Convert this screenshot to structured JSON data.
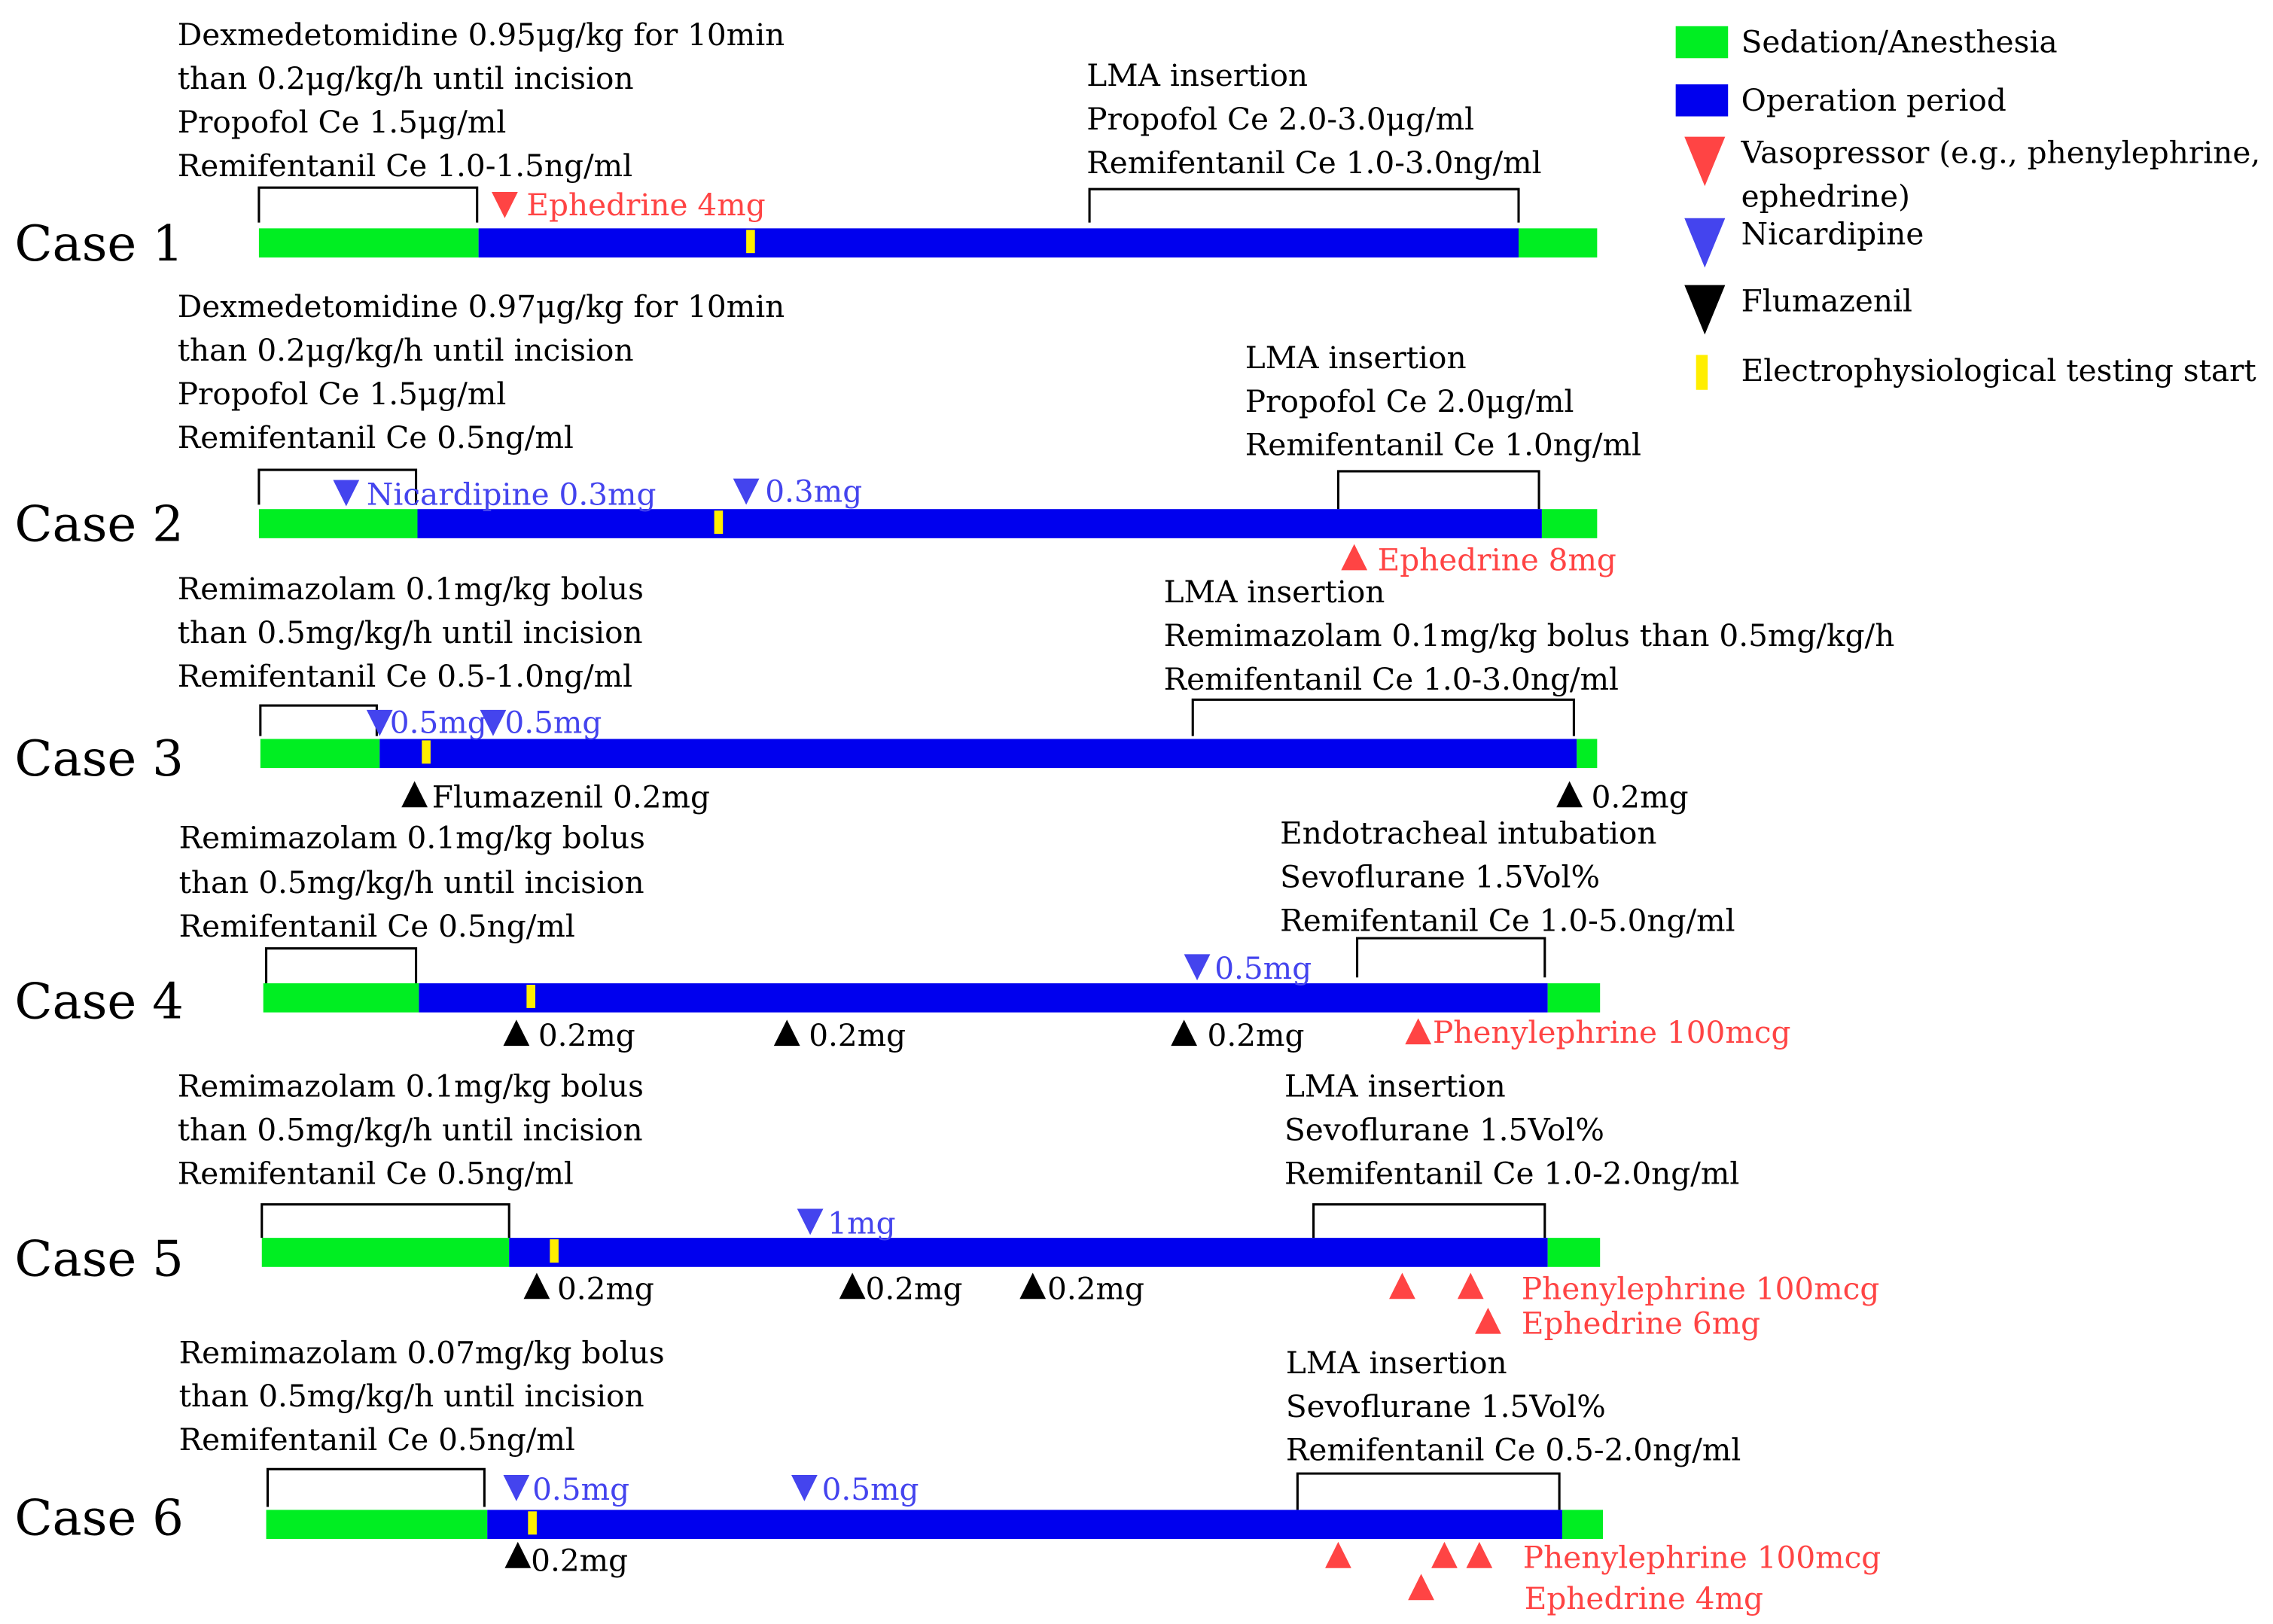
{
  "colors": {
    "sedation": "#00ee22",
    "operation": "#0000ee",
    "vasopressor": "#ff4444",
    "nicardipine": "#4444ee",
    "flumazenil": "#000000",
    "ep_start": "#ffee00",
    "bracket": "#000000",
    "text": "#000000"
  },
  "legend": [
    {
      "key": "sedation",
      "label": "Sedation/Anesthesia",
      "icon": "green-rect"
    },
    {
      "key": "operation",
      "label": "Operation period",
      "icon": "blue-rect"
    },
    {
      "key": "vasopressor",
      "label": "Vasopressor (e.g., phenylephrine,",
      "label2": "ephedrine)",
      "icon": "red-triangle-down"
    },
    {
      "key": "nicardipine",
      "label": "Nicardipine",
      "icon": "blue-triangle-down"
    },
    {
      "key": "flumazenil",
      "label": "Flumazenil",
      "icon": "black-triangle-down"
    },
    {
      "key": "ep_start",
      "label": "Electrophysiological testing start",
      "icon": "yellow-tick"
    }
  ],
  "cases": [
    {
      "label": "Case 1",
      "pre_text": [
        "Dexmedetomidine 0.95μg/kg for 10min",
        "than 0.2μg/kg/h until incision",
        "Propofol Ce 1.5μg/ml",
        "Remifentanil Ce 1.0-1.5ng/ml"
      ],
      "post_text": [
        "LMA insertion",
        "Propofol Ce 2.0-3.0μg/ml",
        "Remifentanil Ce 1.0-3.0ng/ml"
      ],
      "marker_labels": [
        "Ephedrine 4mg"
      ]
    },
    {
      "label": "Case 2",
      "pre_text": [
        "Dexmedetomidine 0.97μg/kg for 10min",
        "than 0.2μg/kg/h until incision",
        "Propofol Ce 1.5μg/ml",
        "Remifentanil Ce 0.5ng/ml"
      ],
      "post_text": [
        "LMA insertion",
        "Propofol Ce 2.0μg/ml",
        "Remifentanil Ce 1.0ng/ml"
      ],
      "marker_labels": [
        "Nicardipine 0.3mg",
        "0.3mg",
        "Ephedrine 8mg"
      ]
    },
    {
      "label": "Case 3",
      "pre_text": [
        "Remimazolam 0.1mg/kg bolus",
        "than 0.5mg/kg/h until incision",
        "Remifentanil Ce 0.5-1.0ng/ml"
      ],
      "post_text": [
        "LMA insertion",
        "Remimazolam 0.1mg/kg bolus than 0.5mg/kg/h",
        "Remifentanil Ce 1.0-3.0ng/ml"
      ],
      "marker_labels": [
        "0.5mg",
        "0.5mg",
        "Flumazenil 0.2mg",
        "0.2mg"
      ]
    },
    {
      "label": "Case 4",
      "pre_text": [
        "Remimazolam 0.1mg/kg bolus",
        "than 0.5mg/kg/h until incision",
        "Remifentanil Ce 0.5ng/ml"
      ],
      "post_text": [
        "Endotracheal intubation",
        "Sevoflurane 1.5Vol%",
        "Remifentanil Ce 1.0-5.0ng/ml"
      ],
      "marker_labels": [
        "0.5mg",
        "0.2mg",
        "0.2mg",
        "0.2mg",
        "Phenylephrine 100mcg"
      ]
    },
    {
      "label": "Case 5",
      "pre_text": [
        "Remimazolam 0.1mg/kg bolus",
        "than 0.5mg/kg/h until incision",
        "Remifentanil Ce 0.5ng/ml"
      ],
      "post_text": [
        "LMA insertion",
        "Sevoflurane 1.5Vol%",
        "Remifentanil Ce 1.0-2.0ng/ml"
      ],
      "marker_labels": [
        "1mg",
        "0.2mg",
        "0.2mg",
        "0.2mg",
        "Phenylephrine 100mcg",
        "Ephedrine 6mg"
      ]
    },
    {
      "label": "Case 6",
      "pre_text": [
        "Remimazolam 0.07mg/kg bolus",
        "than 0.5mg/kg/h until incision",
        "Remifentanil Ce 0.5ng/ml"
      ],
      "post_text": [
        "LMA insertion",
        "Sevoflurane 1.5Vol%",
        "Remifentanil Ce 0.5-2.0ng/ml"
      ],
      "marker_labels": [
        "0.5mg",
        "0.5mg",
        "0.2mg",
        "Phenylephrine 100mcg",
        "Ephedrine 4mg"
      ]
    }
  ]
}
